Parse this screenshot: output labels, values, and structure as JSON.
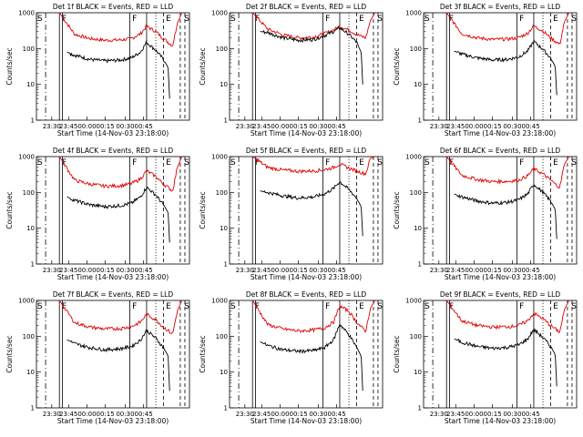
{
  "colors": {
    "events": "#000000",
    "lld": "#e00000",
    "axis": "#000000"
  },
  "chart_data": [
    {
      "type": "line",
      "title": "Det 1f BLACK = Events, RED = LLD",
      "xlabel": "Start Time (14-Nov-03 23:18:00)",
      "ylabel": "Counts/sec",
      "y_scale": "log",
      "ylim": [
        1,
        1000
      ],
      "yticks": [
        "1",
        "10",
        "100",
        "1000"
      ],
      "xticks": [
        "23:30",
        "23:45",
        "00:00",
        "00:15",
        "00:30",
        "00:45"
      ],
      "markers": [
        "S",
        "F",
        "F",
        "E",
        "S"
      ],
      "series": [
        {
          "name": "LLD",
          "x": [
            0.15,
            0.25,
            0.35,
            0.45,
            0.55,
            0.62,
            0.68,
            0.72,
            0.78,
            0.83,
            0.86,
            0.89,
            0.92,
            0.95
          ],
          "y": [
            1000,
            250,
            190,
            170,
            175,
            190,
            260,
            420,
            300,
            190,
            150,
            120,
            500,
            1000
          ]
        },
        {
          "name": "Events",
          "x": [
            0.2,
            0.25,
            0.35,
            0.45,
            0.55,
            0.62,
            0.68,
            0.72,
            0.78,
            0.83,
            0.86,
            0.87
          ],
          "y": [
            80,
            65,
            50,
            45,
            48,
            55,
            80,
            150,
            90,
            50,
            30,
            4
          ]
        }
      ]
    },
    {
      "type": "line",
      "title": "Det 2f BLACK = Events, RED = LLD",
      "xlabel": "Start Time (14-Nov-03 23:18:00)",
      "ylabel": "Counts/sec",
      "y_scale": "log",
      "ylim": [
        1,
        1000
      ],
      "yticks": [
        "1",
        "10",
        "100",
        "1000"
      ],
      "xticks": [
        "23:30",
        "23:45",
        "00:00",
        "00:15",
        "00:30",
        "00:45"
      ],
      "markers": [
        "S",
        "F",
        "F",
        "E",
        "S"
      ],
      "series": [
        {
          "name": "LLD",
          "x": [
            0.15,
            0.25,
            0.35,
            0.45,
            0.55,
            0.62,
            0.68,
            0.72,
            0.78,
            0.83,
            0.86,
            0.89,
            0.92,
            0.95
          ],
          "y": [
            1000,
            350,
            240,
            200,
            210,
            260,
            330,
            420,
            330,
            250,
            220,
            200,
            600,
            1000
          ]
        },
        {
          "name": "Events",
          "x": [
            0.2,
            0.25,
            0.35,
            0.45,
            0.55,
            0.62,
            0.68,
            0.72,
            0.78,
            0.83,
            0.86,
            0.87
          ],
          "y": [
            300,
            280,
            200,
            170,
            180,
            230,
            300,
            380,
            250,
            150,
            80,
            10
          ]
        }
      ]
    },
    {
      "type": "line",
      "title": "Det 3f BLACK = Events, RED = LLD",
      "xlabel": "Start Time (14-Nov-03 23:18:00)",
      "ylabel": "Counts/sec",
      "y_scale": "log",
      "ylim": [
        1,
        1000
      ],
      "yticks": [
        "1",
        "10",
        "100",
        "1000"
      ],
      "xticks": [
        "23:30",
        "23:45",
        "00:00",
        "00:15",
        "00:30",
        "00:45"
      ],
      "markers": [
        "S",
        "F",
        "F",
        "E",
        "S"
      ],
      "series": [
        {
          "name": "LLD",
          "x": [
            0.15,
            0.25,
            0.35,
            0.45,
            0.55,
            0.62,
            0.68,
            0.72,
            0.78,
            0.83,
            0.86,
            0.89,
            0.92,
            0.95
          ],
          "y": [
            1000,
            260,
            200,
            180,
            185,
            200,
            270,
            430,
            310,
            200,
            160,
            130,
            550,
            1000
          ]
        },
        {
          "name": "Events",
          "x": [
            0.2,
            0.25,
            0.35,
            0.45,
            0.55,
            0.62,
            0.68,
            0.72,
            0.78,
            0.83,
            0.86,
            0.87
          ],
          "y": [
            85,
            70,
            55,
            48,
            50,
            58,
            85,
            160,
            95,
            55,
            32,
            5
          ]
        }
      ]
    },
    {
      "type": "line",
      "title": "Det 4f BLACK = Events, RED = LLD",
      "xlabel": "Start Time (14-Nov-03 23:18:00)",
      "ylabel": "Counts/sec",
      "y_scale": "log",
      "ylim": [
        1,
        1000
      ],
      "yticks": [
        "1",
        "10",
        "100",
        "1000"
      ],
      "xticks": [
        "23:30",
        "23:45",
        "00:00",
        "00:15",
        "00:30",
        "00:45"
      ],
      "markers": [
        "S",
        "F",
        "F",
        "E",
        "S"
      ],
      "series": [
        {
          "name": "LLD",
          "x": [
            0.15,
            0.25,
            0.35,
            0.45,
            0.55,
            0.62,
            0.68,
            0.72,
            0.78,
            0.83,
            0.86,
            0.89,
            0.92,
            0.95
          ],
          "y": [
            1000,
            220,
            170,
            150,
            155,
            175,
            240,
            400,
            280,
            170,
            140,
            110,
            480,
            1000
          ]
        },
        {
          "name": "Events",
          "x": [
            0.2,
            0.25,
            0.35,
            0.45,
            0.55,
            0.62,
            0.68,
            0.72,
            0.78,
            0.83,
            0.86,
            0.87
          ],
          "y": [
            75,
            60,
            45,
            40,
            43,
            50,
            75,
            140,
            85,
            45,
            28,
            4
          ]
        }
      ]
    },
    {
      "type": "line",
      "title": "Det 5f BLACK = Events, RED = LLD",
      "xlabel": "Start Time (14-Nov-03 23:18:00)",
      "ylabel": "Counts/sec",
      "y_scale": "log",
      "ylim": [
        1,
        1000
      ],
      "yticks": [
        "1",
        "10",
        "100",
        "1000"
      ],
      "xticks": [
        "23:30",
        "23:45",
        "00:00",
        "00:15",
        "00:30",
        "00:45"
      ],
      "markers": [
        "S",
        "F",
        "F",
        "E",
        "S"
      ],
      "series": [
        {
          "name": "LLD",
          "x": [
            0.15,
            0.25,
            0.35,
            0.45,
            0.55,
            0.62,
            0.68,
            0.72,
            0.78,
            0.83,
            0.86,
            0.89,
            0.92,
            0.95
          ],
          "y": [
            1000,
            500,
            420,
            390,
            400,
            430,
            500,
            620,
            480,
            400,
            360,
            330,
            900,
            1000
          ]
        },
        {
          "name": "Events",
          "x": [
            0.2,
            0.25,
            0.35,
            0.45,
            0.55,
            0.62,
            0.68,
            0.72,
            0.78,
            0.83,
            0.86,
            0.87
          ],
          "y": [
            110,
            100,
            80,
            70,
            75,
            90,
            130,
            200,
            120,
            70,
            40,
            6
          ]
        }
      ]
    },
    {
      "type": "line",
      "title": "Det 6f BLACK = Events, RED = LLD",
      "xlabel": "Start Time (14-Nov-03 23:18:00)",
      "ylabel": "Counts/sec",
      "y_scale": "log",
      "ylim": [
        1,
        1000
      ],
      "yticks": [
        "1",
        "10",
        "100",
        "1000"
      ],
      "xticks": [
        "23:30",
        "23:45",
        "00:00",
        "00:15",
        "00:30",
        "00:45"
      ],
      "markers": [
        "S",
        "F",
        "F",
        "E",
        "S"
      ],
      "series": [
        {
          "name": "LLD",
          "x": [
            0.15,
            0.25,
            0.35,
            0.45,
            0.55,
            0.62,
            0.68,
            0.72,
            0.78,
            0.83,
            0.86,
            0.89,
            0.92,
            0.95
          ],
          "y": [
            1000,
            300,
            230,
            200,
            205,
            220,
            290,
            460,
            330,
            220,
            170,
            140,
            600,
            1000
          ]
        },
        {
          "name": "Events",
          "x": [
            0.2,
            0.25,
            0.35,
            0.45,
            0.55,
            0.62,
            0.68,
            0.72,
            0.78,
            0.83,
            0.86,
            0.87
          ],
          "y": [
            90,
            75,
            58,
            50,
            53,
            62,
            90,
            170,
            100,
            58,
            34,
            5
          ]
        }
      ]
    },
    {
      "type": "line",
      "title": "Det 7f BLACK = Events, RED = LLD",
      "xlabel": "Start Time (14-Nov-03 23:18:00)",
      "ylabel": "Counts/sec",
      "y_scale": "log",
      "ylim": [
        1,
        1000
      ],
      "yticks": [
        "1",
        "10",
        "100",
        "1000"
      ],
      "xticks": [
        "23:30",
        "23:45",
        "00:00",
        "00:15",
        "00:30",
        "00:45"
      ],
      "markers": [
        "S",
        "F",
        "F",
        "E",
        "S"
      ],
      "series": [
        {
          "name": "LLD",
          "x": [
            0.15,
            0.25,
            0.35,
            0.45,
            0.55,
            0.62,
            0.68,
            0.72,
            0.78,
            0.83,
            0.86,
            0.89,
            0.92,
            0.95
          ],
          "y": [
            1000,
            240,
            180,
            160,
            165,
            185,
            250,
            410,
            290,
            180,
            145,
            115,
            500,
            1000
          ]
        },
        {
          "name": "Events",
          "x": [
            0.2,
            0.25,
            0.35,
            0.45,
            0.55,
            0.62,
            0.68,
            0.72,
            0.78,
            0.83,
            0.86,
            0.87
          ],
          "y": [
            80,
            62,
            48,
            42,
            45,
            52,
            78,
            145,
            88,
            48,
            29,
            3
          ]
        }
      ]
    },
    {
      "type": "line",
      "title": "Det 8f BLACK = Events, RED = LLD",
      "xlabel": "Start Time (14-Nov-03 23:18:00)",
      "ylabel": "Counts/sec",
      "y_scale": "log",
      "ylim": [
        1,
        1000
      ],
      "yticks": [
        "1",
        "10",
        "100",
        "1000"
      ],
      "xticks": [
        "23:30",
        "23:45",
        "00:00",
        "00:15",
        "00:30",
        "00:45"
      ],
      "markers": [
        "S",
        "F",
        "F",
        "E",
        "S"
      ],
      "series": [
        {
          "name": "LLD",
          "x": [
            0.15,
            0.25,
            0.35,
            0.45,
            0.55,
            0.62,
            0.68,
            0.72,
            0.78,
            0.83,
            0.86,
            0.89,
            0.92,
            0.95
          ],
          "y": [
            1000,
            210,
            160,
            140,
            150,
            170,
            250,
            700,
            500,
            250,
            180,
            140,
            600,
            1000
          ]
        },
        {
          "name": "Events",
          "x": [
            0.2,
            0.25,
            0.35,
            0.45,
            0.55,
            0.62,
            0.68,
            0.72,
            0.78,
            0.83,
            0.86,
            0.87
          ],
          "y": [
            70,
            55,
            42,
            38,
            40,
            48,
            80,
            220,
            110,
            50,
            28,
            3
          ]
        }
      ]
    },
    {
      "type": "line",
      "title": "Det 9f BLACK = Events, RED = LLD",
      "xlabel": "Start Time (14-Nov-03 23:18:00)",
      "ylabel": "Counts/sec",
      "y_scale": "log",
      "ylim": [
        1,
        1000
      ],
      "yticks": [
        "1",
        "10",
        "100",
        "1000"
      ],
      "xticks": [
        "23:30",
        "23:45",
        "00:00",
        "00:15",
        "00:30",
        "00:45"
      ],
      "markers": [
        "S",
        "F",
        "F",
        "E",
        "S"
      ],
      "series": [
        {
          "name": "LLD",
          "x": [
            0.15,
            0.25,
            0.35,
            0.45,
            0.55,
            0.62,
            0.68,
            0.72,
            0.78,
            0.83,
            0.86,
            0.89,
            0.92,
            0.95
          ],
          "y": [
            1000,
            270,
            200,
            180,
            185,
            200,
            270,
            440,
            310,
            200,
            160,
            130,
            550,
            1000
          ]
        },
        {
          "name": "Events",
          "x": [
            0.2,
            0.25,
            0.35,
            0.45,
            0.55,
            0.62,
            0.68,
            0.72,
            0.78,
            0.83,
            0.86,
            0.87
          ],
          "y": [
            85,
            68,
            52,
            46,
            49,
            57,
            84,
            155,
            92,
            52,
            31,
            4
          ]
        }
      ]
    }
  ]
}
